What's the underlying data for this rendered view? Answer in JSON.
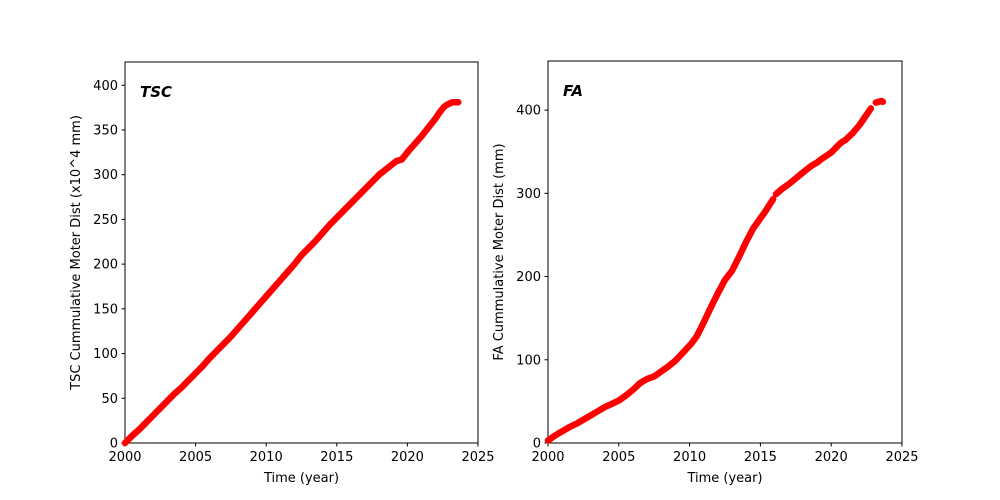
{
  "figure": {
    "background": "#ffffff",
    "axis_color": "#000000",
    "tick_label_color": "#000000",
    "series_color": "#ff0000"
  },
  "chart_data": [
    {
      "id": "tsc",
      "type": "scatter",
      "title": "TSC",
      "xlabel": "Time (year)",
      "ylabel": "TSC Cummulative Moter Dist (x10^4 mm)",
      "xlim": [
        2000,
        2025
      ],
      "ylim": [
        0,
        426
      ],
      "xticks": [
        2000,
        2005,
        2010,
        2015,
        2020,
        2025
      ],
      "yticks": [
        0,
        50,
        100,
        150,
        200,
        250,
        300,
        350,
        400
      ],
      "color": "#ff0000",
      "marker_size": 6.5,
      "grid": false,
      "legend": "none",
      "segments": [
        [
          [
            2000,
            0
          ],
          [
            2000.5,
            8
          ],
          [
            2001,
            15
          ],
          [
            2001.5,
            23
          ],
          [
            2002,
            31
          ],
          [
            2002.5,
            39
          ],
          [
            2003,
            47
          ],
          [
            2003.5,
            55
          ],
          [
            2004,
            62
          ],
          [
            2004.5,
            70
          ],
          [
            2005,
            78
          ],
          [
            2005.5,
            86
          ],
          [
            2006,
            95
          ],
          [
            2006.5,
            103
          ],
          [
            2007,
            111
          ],
          [
            2007.5,
            119
          ],
          [
            2008,
            128
          ],
          [
            2008.5,
            137
          ],
          [
            2009,
            146
          ],
          [
            2009.5,
            155
          ],
          [
            2010,
            164
          ],
          [
            2010.5,
            173
          ],
          [
            2011,
            182
          ],
          [
            2011.5,
            191
          ],
          [
            2012,
            200
          ],
          [
            2012.5,
            210
          ],
          [
            2013,
            218
          ],
          [
            2013.5,
            226
          ],
          [
            2014,
            235
          ],
          [
            2014.5,
            244
          ],
          [
            2015,
            252
          ],
          [
            2015.5,
            260
          ],
          [
            2016,
            268
          ],
          [
            2016.5,
            276
          ],
          [
            2017,
            284
          ],
          [
            2017.5,
            292
          ],
          [
            2018,
            300
          ],
          [
            2018.4,
            305
          ],
          [
            2018.8,
            310
          ],
          [
            2019.2,
            315
          ],
          [
            2019.6,
            317
          ],
          [
            2020,
            325
          ],
          [
            2020.5,
            334
          ],
          [
            2021,
            343
          ],
          [
            2021.5,
            353
          ],
          [
            2022,
            363
          ],
          [
            2022.3,
            370
          ],
          [
            2022.6,
            376
          ],
          [
            2022.9,
            379
          ],
          [
            2023.2,
            381
          ],
          [
            2023.6,
            381
          ]
        ]
      ]
    },
    {
      "id": "fa",
      "type": "scatter",
      "title": "FA",
      "xlabel": "Time (year)",
      "ylabel": "FA Cummulative Moter Dist (mm)",
      "xlim": [
        2000,
        2025
      ],
      "ylim": [
        0,
        459
      ],
      "xticks": [
        2000,
        2005,
        2010,
        2015,
        2020,
        2025
      ],
      "yticks": [
        0,
        100,
        200,
        300,
        400
      ],
      "color": "#ff0000",
      "marker_size": 6.5,
      "grid": false,
      "legend": "none",
      "segments": [
        [
          [
            2000,
            3
          ],
          [
            2000.5,
            9
          ],
          [
            2001,
            14
          ],
          [
            2001.5,
            19
          ],
          [
            2002,
            23
          ],
          [
            2002.5,
            28
          ],
          [
            2003,
            33
          ],
          [
            2003.5,
            38
          ],
          [
            2004,
            43
          ],
          [
            2004.5,
            47
          ],
          [
            2005,
            51
          ],
          [
            2005.5,
            57
          ],
          [
            2006,
            64
          ],
          [
            2006.5,
            72
          ],
          [
            2007,
            77
          ],
          [
            2007.5,
            80
          ],
          [
            2008,
            86
          ],
          [
            2008.5,
            92
          ],
          [
            2009,
            99
          ],
          [
            2009.5,
            108
          ],
          [
            2010.1,
            119
          ],
          [
            2010.5,
            128
          ],
          [
            2011,
            145
          ],
          [
            2011.5,
            163
          ],
          [
            2012,
            180
          ],
          [
            2012.5,
            196
          ],
          [
            2013,
            207
          ],
          [
            2013.5,
            224
          ],
          [
            2014,
            242
          ],
          [
            2014.5,
            258
          ],
          [
            2015,
            270
          ],
          [
            2015.3,
            277
          ],
          [
            2015.6,
            285
          ],
          [
            2015.9,
            293
          ]
        ],
        [
          [
            2016.1,
            299
          ],
          [
            2016.5,
            305
          ],
          [
            2017,
            311
          ],
          [
            2017.5,
            318
          ],
          [
            2018,
            325
          ],
          [
            2018.6,
            333
          ],
          [
            2019,
            337
          ],
          [
            2019.3,
            341
          ],
          [
            2020,
            349
          ],
          [
            2020.4,
            356
          ],
          [
            2020.7,
            361
          ],
          [
            2021,
            364
          ],
          [
            2021.5,
            372
          ],
          [
            2022,
            382
          ],
          [
            2022.4,
            392
          ],
          [
            2022.8,
            402
          ]
        ],
        [
          [
            2023.15,
            409
          ],
          [
            2023.35,
            410
          ],
          [
            2023.55,
            411
          ],
          [
            2023.65,
            410
          ]
        ]
      ]
    }
  ]
}
